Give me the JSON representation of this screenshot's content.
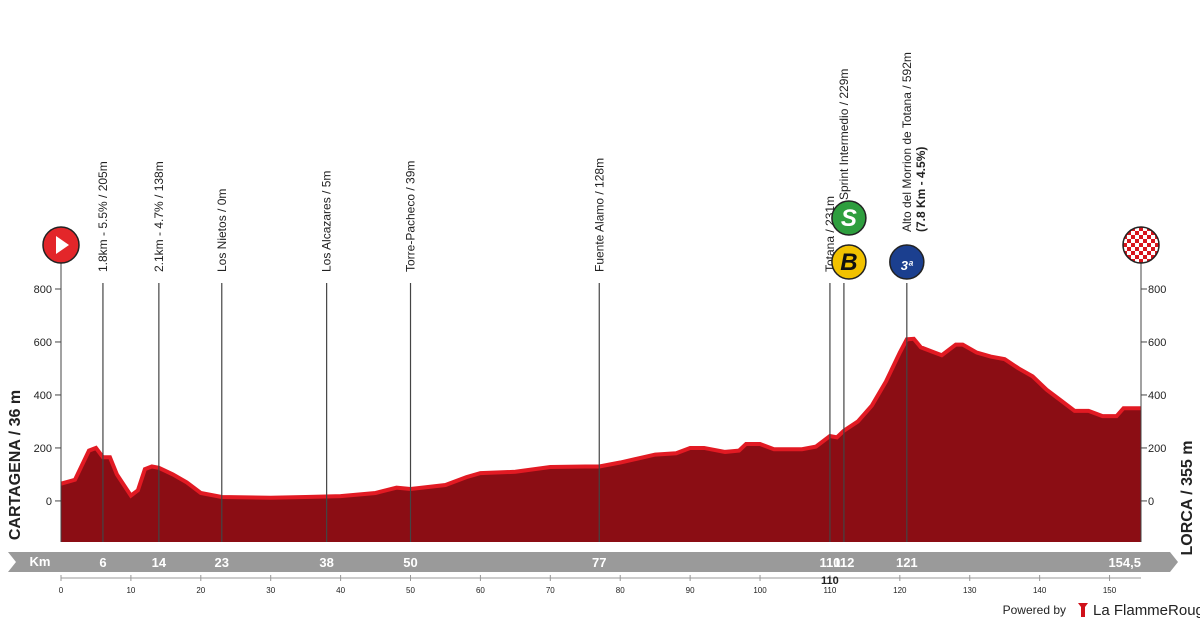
{
  "chart_data": {
    "type": "area",
    "start": "CARTAGENA / 36 m",
    "finish": "LORCA / 355 m",
    "x_label": "Km",
    "x": [
      0,
      2,
      4,
      5,
      6,
      7,
      8,
      10,
      11,
      12,
      13,
      14,
      16,
      18,
      20,
      23,
      30,
      35,
      40,
      45,
      48,
      50,
      55,
      58,
      60,
      65,
      70,
      75,
      77,
      80,
      85,
      88,
      90,
      92,
      95,
      97,
      98,
      100,
      102,
      106,
      108,
      110,
      111,
      112,
      114,
      116,
      118,
      120,
      121,
      122,
      123,
      125,
      126,
      128,
      129,
      131,
      133,
      135,
      137,
      139,
      141,
      143,
      145,
      147,
      149,
      151,
      152,
      154.5
    ],
    "values": [
      65,
      80,
      190,
      200,
      165,
      165,
      100,
      20,
      40,
      120,
      130,
      125,
      100,
      70,
      30,
      15,
      12,
      15,
      18,
      30,
      50,
      45,
      60,
      90,
      105,
      110,
      128,
      130,
      130,
      145,
      175,
      180,
      200,
      200,
      185,
      190,
      215,
      215,
      195,
      195,
      205,
      245,
      240,
      265,
      300,
      360,
      450,
      560,
      610,
      612,
      580,
      560,
      550,
      590,
      590,
      560,
      545,
      535,
      500,
      470,
      420,
      380,
      340,
      340,
      320,
      320,
      350,
      350
    ],
    "color": "#8b0d14",
    "edge_color": "#e21a23",
    "xlim": [
      0,
      154.5
    ],
    "xticks": [
      0,
      10,
      20,
      30,
      40,
      50,
      60,
      70,
      80,
      90,
      100,
      110,
      120,
      130,
      140,
      150
    ],
    "ylim": [
      -155,
      1000
    ],
    "yticks": [
      0,
      200,
      400,
      600,
      800
    ],
    "waypoints": [
      {
        "km": 6,
        "label": "1.8km - 5.5% / 205m"
      },
      {
        "km": 14,
        "label": "2.1km - 4.7% / 138m"
      },
      {
        "km": 23,
        "label": "Los Nietos / 0m"
      },
      {
        "km": 38,
        "label": "Los Alcazares / 5m"
      },
      {
        "km": 50,
        "label": "Torre-Pacheco / 39m"
      },
      {
        "km": 77,
        "label": "Fuente Alamo / 128m"
      },
      {
        "km": 110,
        "label": "Totana / 231m"
      },
      {
        "km": 112,
        "label": "Sprint Intermedio / 229m",
        "icons": [
          "S",
          "B"
        ]
      },
      {
        "km": 121,
        "label": "Alto del Morrion de Totana / 592m",
        "sublabel": "(7.8 Km - 4.5%)",
        "icons": [
          "3ª"
        ]
      },
      {
        "km": {
          "value": 154.5,
          "label": "154,5"
        }
      }
    ],
    "footer": {
      "powered": "Powered by",
      "brand": "La FlammeRouge"
    }
  }
}
